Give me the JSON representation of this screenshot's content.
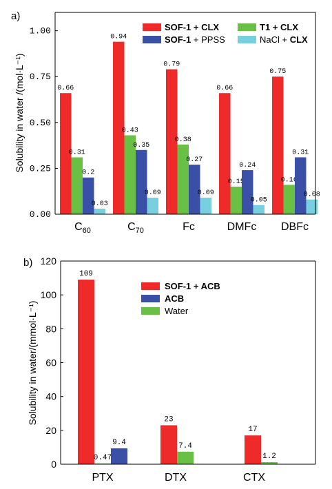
{
  "chart_data": [
    {
      "panel_label": "a)",
      "type": "bar",
      "ylabel": "Solubility in water /(mol·L⁻¹)",
      "ylim": [
        0,
        1.1
      ],
      "yticks": [
        "0.00",
        "0.25",
        "0.50",
        "0.75",
        "1.00"
      ],
      "categories": [
        {
          "main": "C",
          "sub": "60"
        },
        {
          "main": "C",
          "sub": "70"
        },
        {
          "main": "Fc",
          "sub": ""
        },
        {
          "main": "DMFc",
          "sub": ""
        },
        {
          "main": "DBFc",
          "sub": ""
        }
      ],
      "series": [
        {
          "name": "SOF-1 + CLX",
          "color": "#ee2a2a",
          "values": [
            0.66,
            0.94,
            0.79,
            0.66,
            0.75
          ],
          "labels": [
            "0.66",
            "0.94",
            "0.79",
            "0.66",
            "0.75"
          ]
        },
        {
          "name": "T1 + CLX",
          "color": "#6abf45",
          "values": [
            0.31,
            0.43,
            0.38,
            0.15,
            0.16
          ],
          "labels": [
            "0.31",
            "0.43",
            "0.38",
            "0.15",
            "0.16"
          ]
        },
        {
          "name": "SOF-1 + PPSS",
          "color": "#3a4fa6",
          "values": [
            0.2,
            0.35,
            0.27,
            0.24,
            0.31
          ],
          "labels": [
            "0.2",
            "0.35",
            "0.27",
            "0.24",
            "0.31"
          ]
        },
        {
          "name": "NaCl + CLX",
          "color": "#78cfe0",
          "values": [
            0.03,
            0.09,
            0.09,
            0.05,
            0.08
          ],
          "labels": [
            "0.03",
            "0.09",
            "0.09",
            "0.05",
            "0.08"
          ]
        }
      ],
      "legend": [
        {
          "parts": [
            {
              "t": "SOF-1 + CLX",
              "b": true
            }
          ],
          "color": "#ee2a2a"
        },
        {
          "parts": [
            {
              "t": "T1 + CLX",
              "b": true
            }
          ],
          "color": "#6abf45"
        },
        {
          "parts": [
            {
              "t": "SOF-1",
              "b": true
            },
            {
              "t": " + PPSS",
              "b": false
            }
          ],
          "color": "#3a4fa6"
        },
        {
          "parts": [
            {
              "t": "NaCl + ",
              "b": false
            },
            {
              "t": "CLX",
              "b": true
            }
          ],
          "color": "#78cfe0"
        }
      ],
      "legend_position": "top-right"
    },
    {
      "panel_label": "b)",
      "type": "bar",
      "ylabel": "Solubility in water/(mmol·L⁻¹)",
      "ylim": [
        0,
        120
      ],
      "yticks": [
        "0",
        "20",
        "40",
        "60",
        "80",
        "100",
        "120"
      ],
      "categories": [
        {
          "main": "PTX",
          "sub": ""
        },
        {
          "main": "DTX",
          "sub": ""
        },
        {
          "main": "CTX",
          "sub": ""
        }
      ],
      "series": [
        {
          "name": "SOF-1 + ACB",
          "color": "#ee2a2a",
          "values": [
            109,
            23,
            17
          ],
          "labels": [
            "109",
            "23",
            "17"
          ]
        },
        {
          "name": "Water",
          "color": "#6abf45",
          "values": [
            0.47,
            7.4,
            1.2
          ],
          "labels": [
            "0.47",
            "7.4",
            "1.2"
          ]
        },
        {
          "name": "ACB",
          "color": "#3a4fa6",
          "values": [
            9.4,
            null,
            null
          ],
          "labels": [
            "9.4",
            "",
            ""
          ]
        }
      ],
      "legend": [
        {
          "parts": [
            {
              "t": "SOF-1 + ACB",
              "b": true
            }
          ],
          "color": "#ee2a2a"
        },
        {
          "parts": [
            {
              "t": "ACB",
              "b": true
            }
          ],
          "color": "#3a4fa6"
        },
        {
          "parts": [
            {
              "t": "Water",
              "b": false
            }
          ],
          "color": "#6abf45"
        }
      ],
      "legend_position": "top-center"
    }
  ]
}
